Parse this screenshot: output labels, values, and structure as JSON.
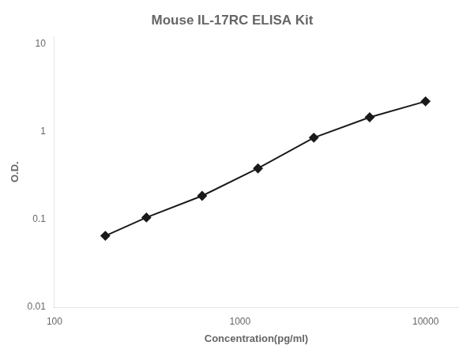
{
  "chart_data": {
    "type": "line",
    "title": "Mouse IL-17RC ELISA Kit",
    "x_label": "Concentration(pg/ml)",
    "y_label": "O.D.",
    "x": [
      188,
      313,
      625,
      1250,
      2500,
      5000,
      10000
    ],
    "values": [
      0.065,
      0.105,
      0.185,
      0.38,
      0.85,
      1.45,
      2.2
    ],
    "color": "#1a1a1a",
    "marker": "diamond",
    "log": true,
    "xlim": [
      100,
      15000
    ],
    "ylim": [
      0.01,
      12
    ],
    "xticks": [
      100,
      1000,
      10000
    ],
    "yticks": [
      0.01,
      0.1,
      1,
      10
    ],
    "grid": false
  }
}
